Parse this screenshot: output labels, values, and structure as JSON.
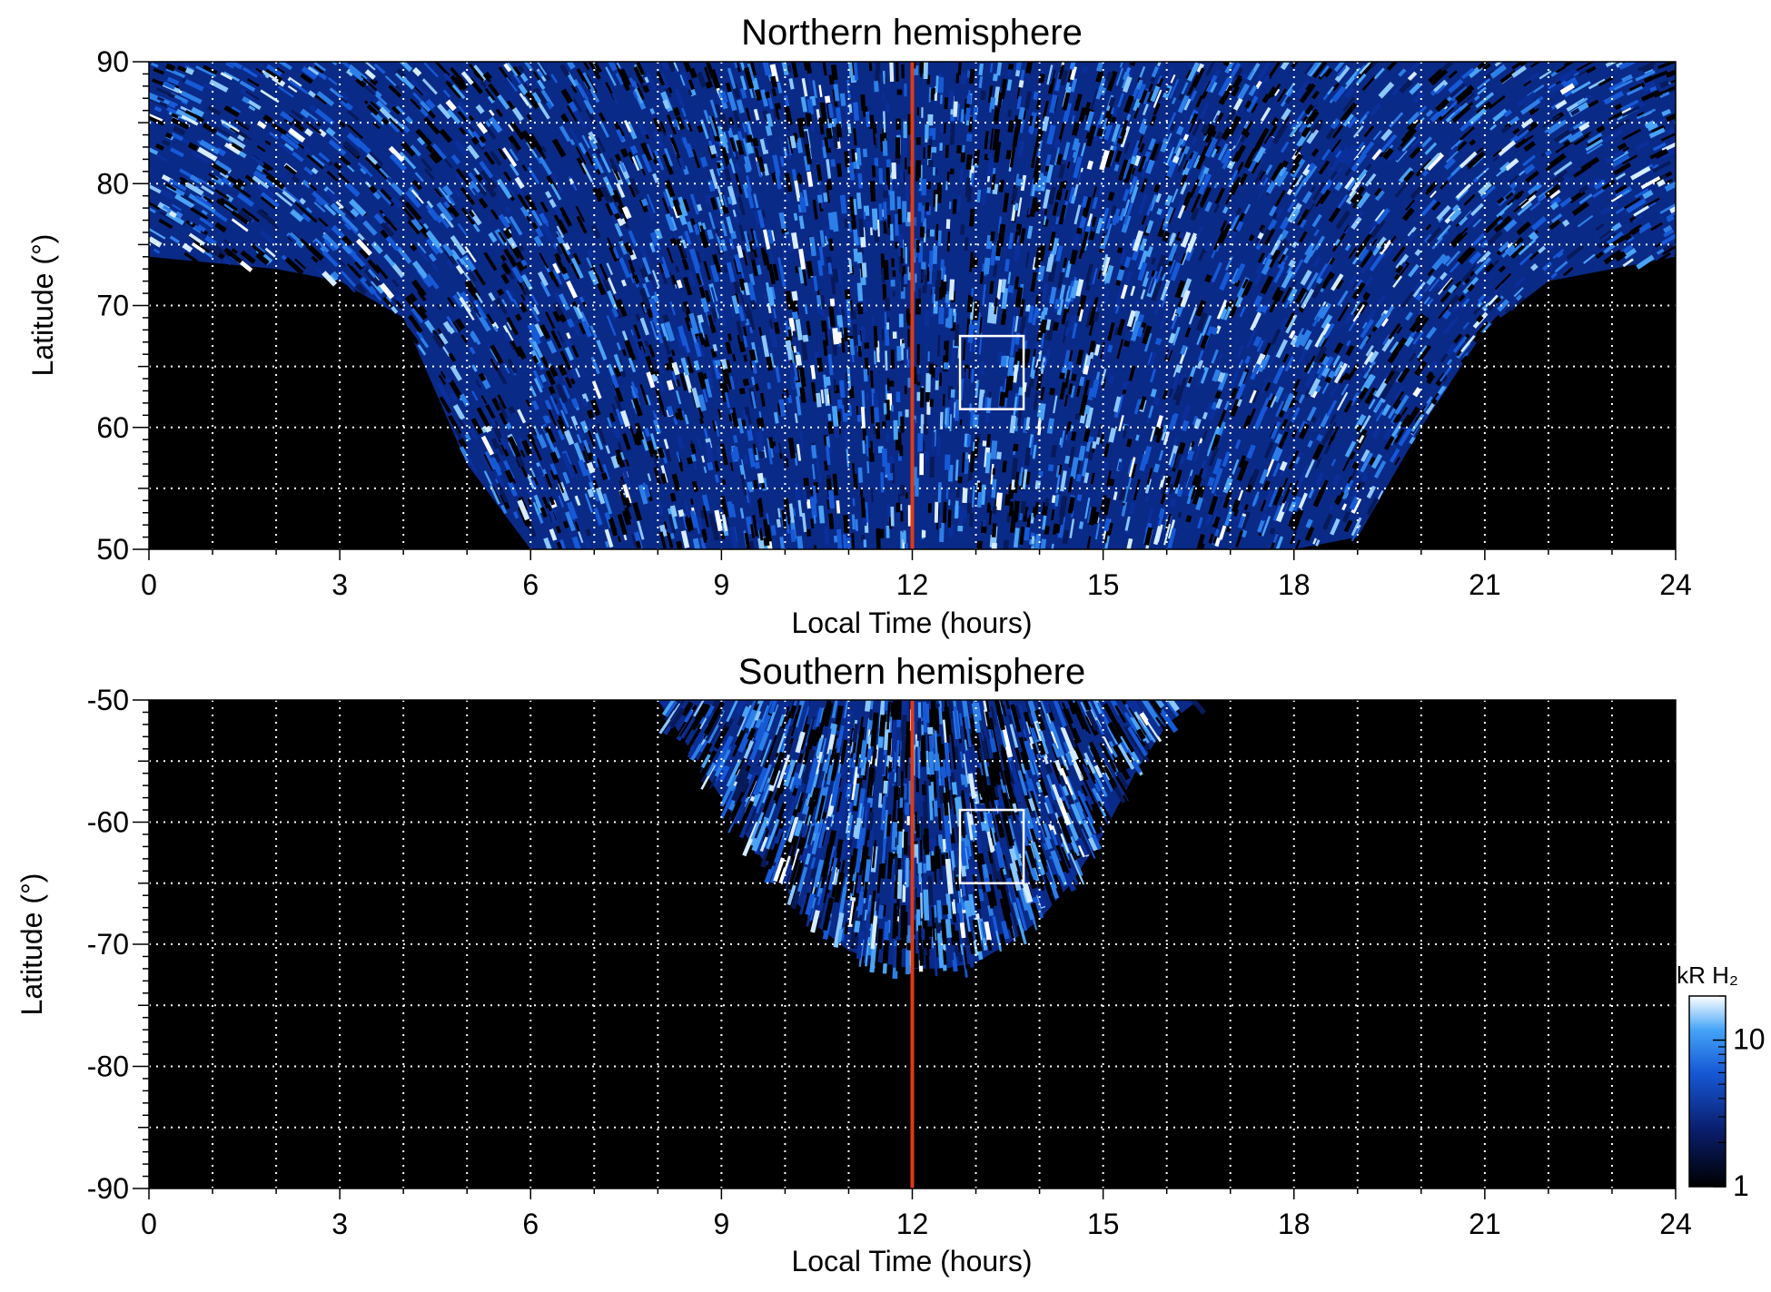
{
  "chart_data": [
    {
      "type": "heatmap",
      "title": "Northern hemisphere",
      "xlabel": "Local Time (hours)",
      "ylabel": "Latitude (°)",
      "xlim": [
        0,
        24
      ],
      "ylim": [
        50,
        90
      ],
      "x_ticks": [
        0,
        3,
        6,
        9,
        12,
        15,
        18,
        21,
        24
      ],
      "x_tick_labels": [
        "0",
        "3",
        "6",
        "9",
        "12",
        "15",
        "18",
        "21",
        "24"
      ],
      "y_ticks": [
        50,
        60,
        70,
        80,
        90
      ],
      "y_tick_labels": [
        "50",
        "60",
        "70",
        "80",
        "90"
      ],
      "grid": true,
      "coverage_boundary": {
        "lt": [
          0,
          1,
          2,
          3,
          4,
          5,
          6,
          7,
          8,
          9,
          10,
          11,
          12,
          13,
          14,
          15,
          16,
          17,
          18,
          19,
          20,
          21,
          22,
          23,
          24
        ],
        "min_latitude": [
          74,
          73.5,
          73,
          72,
          69,
          57,
          50,
          50,
          50,
          50,
          50,
          50,
          50,
          50,
          50,
          50,
          50,
          50,
          50,
          51,
          60,
          68,
          72,
          73,
          74
        ]
      },
      "noon_line_lt": 12,
      "box": {
        "lt": [
          12.75,
          13.75
        ],
        "latitude": [
          61.5,
          67.5
        ]
      }
    },
    {
      "type": "heatmap",
      "title": "Southern hemisphere",
      "xlabel": "Local Time (hours)",
      "ylabel": "Latitude (°)",
      "xlim": [
        0,
        24
      ],
      "ylim": [
        -90,
        -50
      ],
      "x_ticks": [
        0,
        3,
        6,
        9,
        12,
        15,
        18,
        21,
        24
      ],
      "x_tick_labels": [
        "0",
        "3",
        "6",
        "9",
        "12",
        "15",
        "18",
        "21",
        "24"
      ],
      "y_ticks": [
        -90,
        -80,
        -70,
        -60,
        -50
      ],
      "y_tick_labels": [
        "-90",
        "-80",
        "-70",
        "-60",
        "-50"
      ],
      "grid": true,
      "coverage_boundary": {
        "lt": [
          8,
          8.5,
          9,
          9.5,
          10,
          10.5,
          11,
          11.5,
          12,
          12.5,
          13,
          13.5,
          14,
          14.5,
          15,
          15.5,
          16,
          16.5
        ],
        "max_abs_latitude": [
          50,
          54,
          58,
          62,
          65.5,
          68.5,
          70.5,
          71.5,
          72,
          72,
          71.5,
          70,
          68,
          65,
          61,
          56,
          52,
          50
        ]
      },
      "noon_line_lt": 12,
      "box": {
        "lt": [
          12.75,
          13.75
        ],
        "latitude": [
          -65,
          -59
        ]
      }
    }
  ],
  "colorbar": {
    "label": "kR H₂",
    "scale": "log",
    "range": [
      1,
      20
    ],
    "ticks": [
      1,
      10
    ],
    "tick_labels": [
      "1",
      "10"
    ],
    "colors": [
      "#000000",
      "#0a1e6e",
      "#1659d6",
      "#43a3f7",
      "#ffffff"
    ]
  },
  "colors": {
    "noon_line": "#e03a14",
    "box": "#ffffff",
    "grid": "#ffffff"
  }
}
